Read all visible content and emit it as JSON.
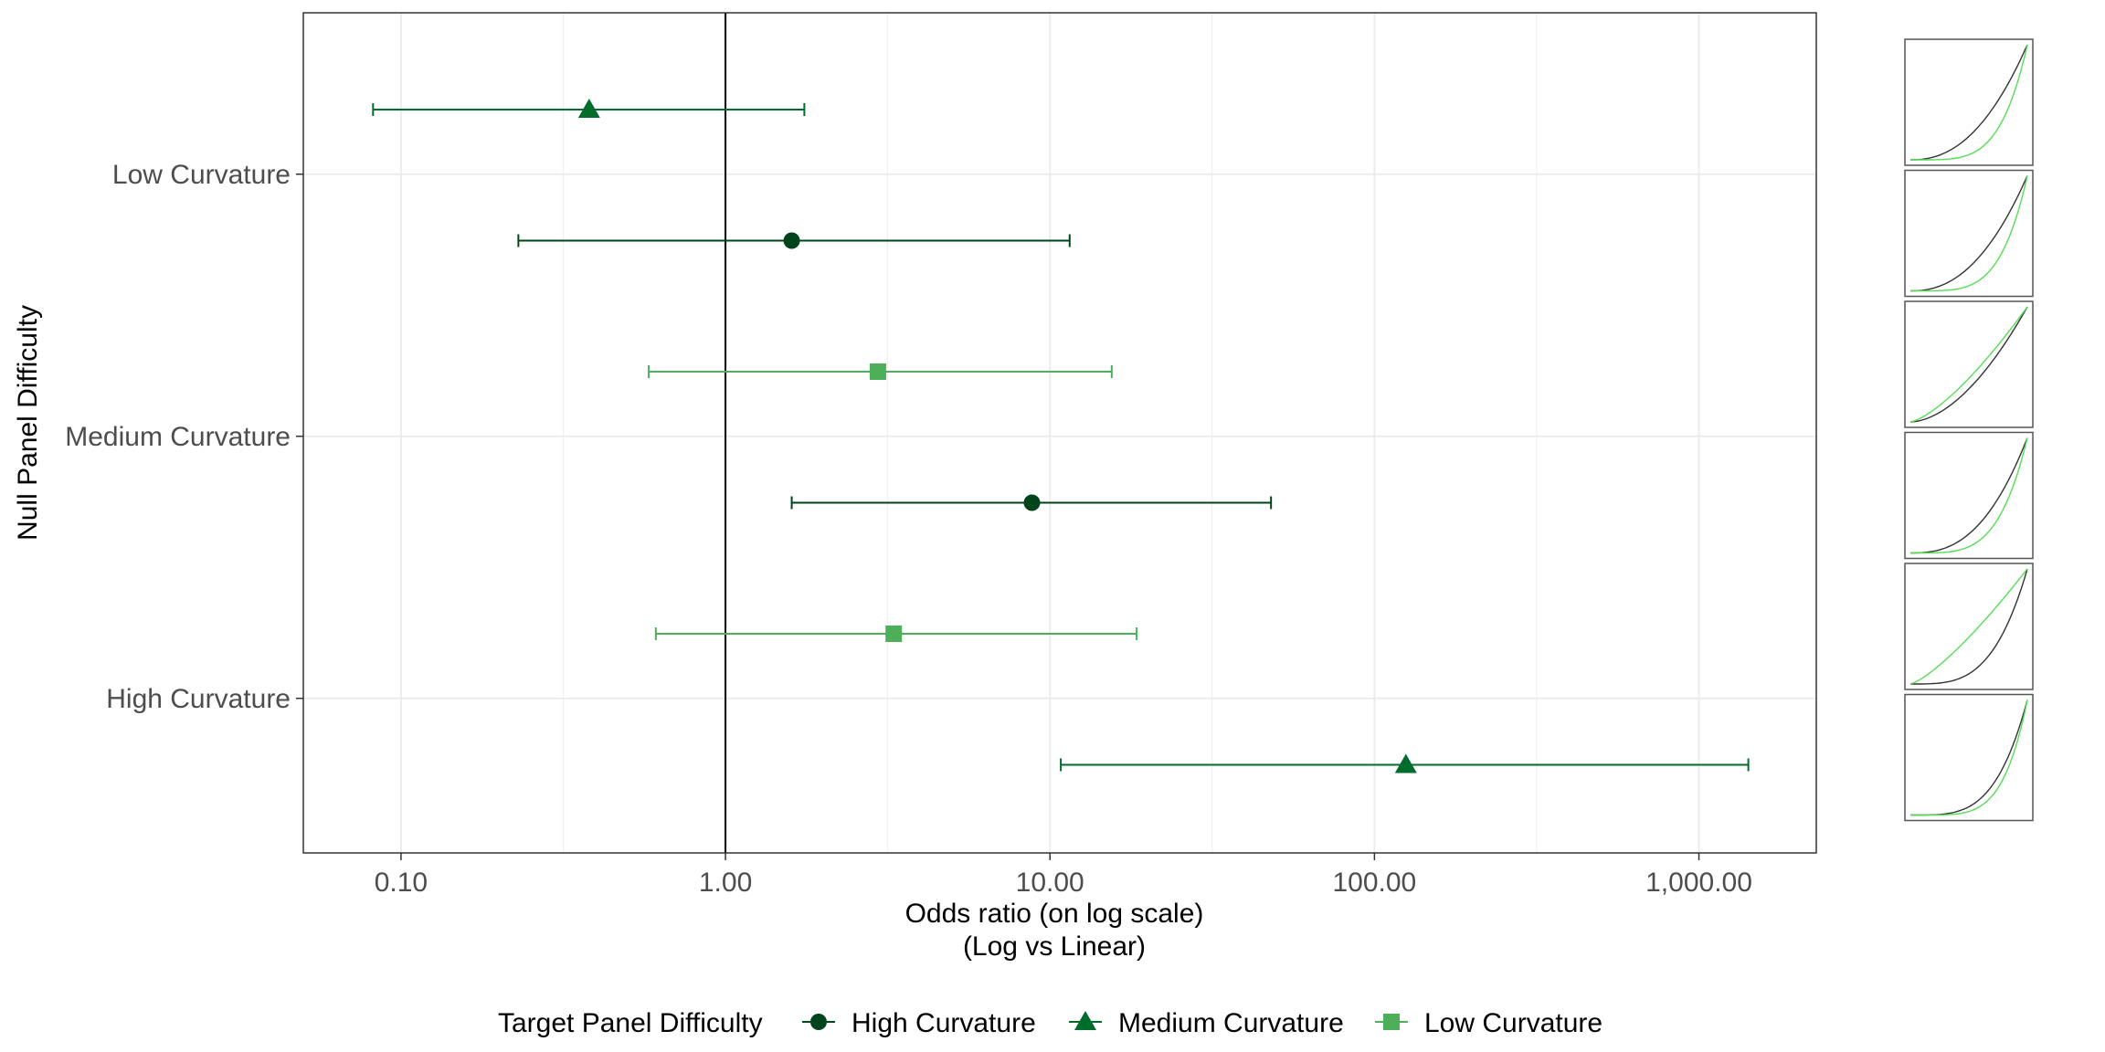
{
  "chart_data": {
    "type": "scatter",
    "subtype": "forest-plot-with-error-bars",
    "x_scale": "log",
    "xlabel_line1": "Odds ratio (on log scale)",
    "xlabel_line2": "(Log vs Linear)",
    "ylabel": "Null Panel Difficulty",
    "xlim": [
      0.05,
      2300
    ],
    "x_ticks": [
      0.1,
      1,
      10,
      100,
      1000
    ],
    "x_tick_labels": [
      "0.10",
      "1.00",
      "10.00",
      "100.00",
      "1,000.00"
    ],
    "x_minor_ticks": [
      0.316,
      3.16,
      31.6,
      316
    ],
    "reference_line_x": 1,
    "grid": true,
    "categories": [
      "Low Curvature",
      "Medium Curvature",
      "High Curvature"
    ],
    "legend": {
      "title": "Target Panel Difficulty",
      "placement": "bottom",
      "entries": [
        {
          "label": "High Curvature",
          "shape": "circle",
          "color": "#00441b"
        },
        {
          "label": "Medium Curvature",
          "shape": "triangle",
          "color": "#006d2c"
        },
        {
          "label": "Low Curvature",
          "shape": "square",
          "color": "#4daf5a"
        }
      ]
    },
    "series": [
      {
        "name": "High Curvature",
        "shape": "circle",
        "color": "#00441b",
        "points": [
          {
            "category": "Low Curvature",
            "estimate": 1.6,
            "lower": 0.23,
            "upper": 11.5
          },
          {
            "category": "Medium Curvature",
            "estimate": 8.8,
            "lower": 1.6,
            "upper": 48
          }
        ]
      },
      {
        "name": "Medium Curvature",
        "shape": "triangle",
        "color": "#006d2c",
        "points": [
          {
            "category": "Low Curvature",
            "estimate": 0.38,
            "lower": 0.082,
            "upper": 1.75
          },
          {
            "category": "High Curvature",
            "estimate": 125,
            "lower": 10.8,
            "upper": 1420
          }
        ]
      },
      {
        "name": "Low Curvature",
        "shape": "square",
        "color": "#4daf5a",
        "points": [
          {
            "category": "Medium Curvature",
            "estimate": 2.95,
            "lower": 0.58,
            "upper": 15.5
          },
          {
            "category": "High Curvature",
            "estimate": 3.3,
            "lower": 0.61,
            "upper": 18.5
          }
        ]
      }
    ],
    "row_order": [
      {
        "category": "Low Curvature",
        "series": "Medium Curvature"
      },
      {
        "category": "Low Curvature",
        "series": "High Curvature"
      },
      {
        "category": "Medium Curvature",
        "series": "Low Curvature"
      },
      {
        "category": "Medium Curvature",
        "series": "High Curvature"
      },
      {
        "category": "High Curvature",
        "series": "Low Curvature"
      },
      {
        "category": "High Curvature",
        "series": "Medium Curvature"
      }
    ],
    "thumbnails": {
      "line_colors": [
        "#333333",
        "#55dd55"
      ],
      "panels": [
        {
          "black_exponent": 2.3,
          "green_exponent": 4.5
        },
        {
          "black_exponent": 2.3,
          "green_exponent": 4.5
        },
        {
          "black_exponent": 1.8,
          "green_exponent": 1.4
        },
        {
          "black_exponent": 2.6,
          "green_exponent": 4.2
        },
        {
          "black_exponent": 3.5,
          "green_exponent": 1.3
        },
        {
          "black_exponent": 3.8,
          "green_exponent": 5.0
        }
      ]
    }
  }
}
